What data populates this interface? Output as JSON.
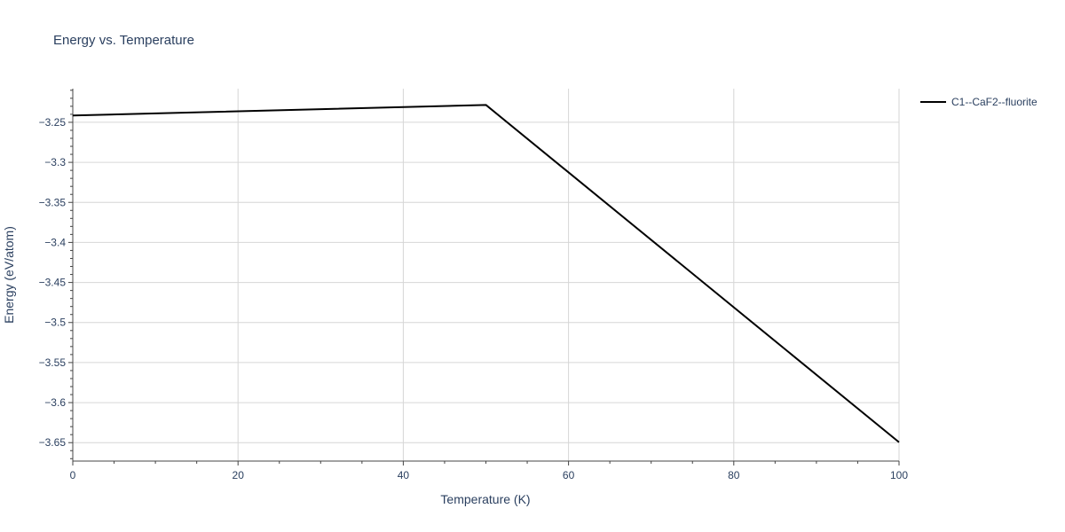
{
  "chart_data": {
    "type": "line",
    "title": "Energy vs. Temperature",
    "xlabel": "Temperature (K)",
    "ylabel": "Energy (eV/atom)",
    "xlim": [
      0,
      100
    ],
    "ylim": [
      -3.673,
      -3.208
    ],
    "x_ticks": [
      0,
      20,
      40,
      60,
      80,
      100
    ],
    "y_ticks": [
      -3.25,
      -3.3,
      -3.35,
      -3.4,
      -3.45,
      -3.5,
      -3.55,
      -3.6,
      -3.65
    ],
    "y_tick_labels": [
      "−3.25",
      "−3.3",
      "−3.35",
      "−3.4",
      "−3.45",
      "−3.5",
      "−3.55",
      "−3.6",
      "−3.65"
    ],
    "grid": true,
    "legend_position": "top-right",
    "series": [
      {
        "name": "C1--CaF2--fluorite",
        "color": "#000000",
        "x": [
          0,
          50,
          100
        ],
        "y": [
          -3.2415,
          -3.2283,
          -3.6495
        ]
      }
    ]
  }
}
